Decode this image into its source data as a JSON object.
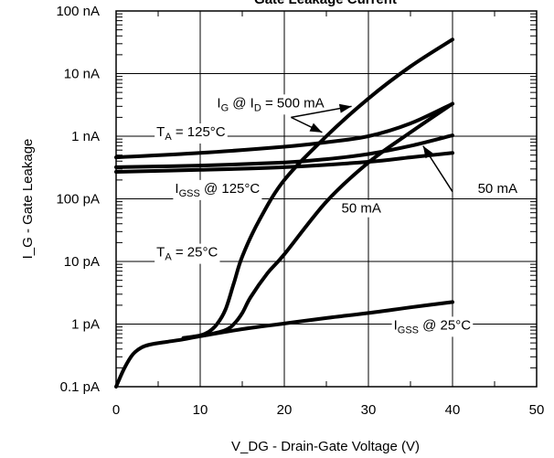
{
  "chart_data": {
    "type": "line",
    "title": "Gate Leakage Current",
    "xlabel": "V_DG - Drain-Gate Voltage (V)",
    "ylabel": "I_G - Gate Leakage",
    "xlim": [
      0,
      50
    ],
    "ylim": [
      0.1,
      100000
    ],
    "y_scale": "log",
    "grid": true,
    "x_ticks": [
      {
        "value": 0,
        "label": "0"
      },
      {
        "value": 10,
        "label": "10"
      },
      {
        "value": 20,
        "label": "20"
      },
      {
        "value": 30,
        "label": "30"
      },
      {
        "value": 40,
        "label": "40"
      },
      {
        "value": 50,
        "label": "50"
      }
    ],
    "y_ticks": [
      {
        "value": 0.1,
        "label": "0.1 pA"
      },
      {
        "value": 1,
        "label": "1 pA"
      },
      {
        "value": 10,
        "label": "10 pA"
      },
      {
        "value": 100,
        "label": "100 pA"
      },
      {
        "value": 1000,
        "label": "1 nA"
      },
      {
        "value": 10000,
        "label": "10 nA"
      },
      {
        "value": 100000,
        "label": "100 nA"
      }
    ],
    "series": [
      {
        "x": [
          0,
          1,
          2,
          3,
          4,
          6,
          8,
          10,
          15,
          20,
          25,
          30,
          35,
          40
        ],
        "values": [
          0.1,
          0.2,
          0.33,
          0.42,
          0.47,
          0.52,
          0.57,
          0.64,
          0.83,
          1.02,
          1.25,
          1.5,
          1.85,
          2.25
        ]
      },
      {
        "x": [
          8,
          10,
          11,
          12,
          13,
          14,
          15,
          17,
          20,
          25,
          30,
          35,
          40
        ],
        "values": [
          0.6,
          0.66,
          0.75,
          1.0,
          1.7,
          4.5,
          12,
          45,
          200,
          1000,
          4000,
          13000,
          35000
        ]
      },
      {
        "x": [
          9,
          11,
          13,
          14,
          15,
          16,
          18,
          20,
          25,
          30,
          35,
          40
        ],
        "values": [
          0.62,
          0.68,
          0.8,
          1.0,
          1.5,
          2.7,
          6.5,
          13,
          90,
          380,
          1150,
          3300
        ]
      },
      {
        "x": [
          0,
          10,
          20,
          25,
          30,
          35,
          40
        ],
        "values": [
          460,
          540,
          680,
          800,
          1000,
          1600,
          3300
        ]
      },
      {
        "x": [
          0,
          10,
          20,
          25,
          30,
          35,
          40
        ],
        "values": [
          320,
          340,
          380,
          430,
          520,
          700,
          1030
        ]
      },
      {
        "x": [
          0,
          10,
          20,
          30,
          35,
          40
        ],
        "values": [
          270,
          290,
          320,
          390,
          460,
          540
        ]
      }
    ],
    "annotations": [
      {
        "key": "ig_500",
        "main": "I",
        "sub": "G",
        "mid": " @ I",
        "sub2": "D",
        "rest": " = 500 mA",
        "x": 12,
        "y": 2900
      },
      {
        "key": "ta125",
        "main": "T",
        "sub": "A",
        "rest": " = 125°C",
        "x": 4.8,
        "y": 1000
      },
      {
        "key": "igss125",
        "main": "I",
        "sub": "GSS",
        "rest": " @ 125°C",
        "x": 7,
        "y": 125
      },
      {
        "key": "ma50_right",
        "main": "50 mA",
        "x": 43,
        "y": 125
      },
      {
        "key": "ma50_center",
        "main": "50 mA",
        "x": 26.8,
        "y": 60
      },
      {
        "key": "ta25",
        "main": "T",
        "sub": "A",
        "rest": " = 25°C",
        "x": 4.8,
        "y": 12
      },
      {
        "key": "igss25",
        "main": "I",
        "sub": "GSS",
        "rest": " @ 25°C",
        "x": 33,
        "y": 0.82
      }
    ],
    "arrows": [
      {
        "from": [
          20.8,
          2000
        ],
        "to": [
          28,
          3000
        ]
      },
      {
        "from": [
          20.8,
          2000
        ],
        "to": [
          24.5,
          1150
        ]
      },
      {
        "from": [
          40,
          130
        ],
        "to": [
          36.5,
          700
        ]
      }
    ]
  }
}
